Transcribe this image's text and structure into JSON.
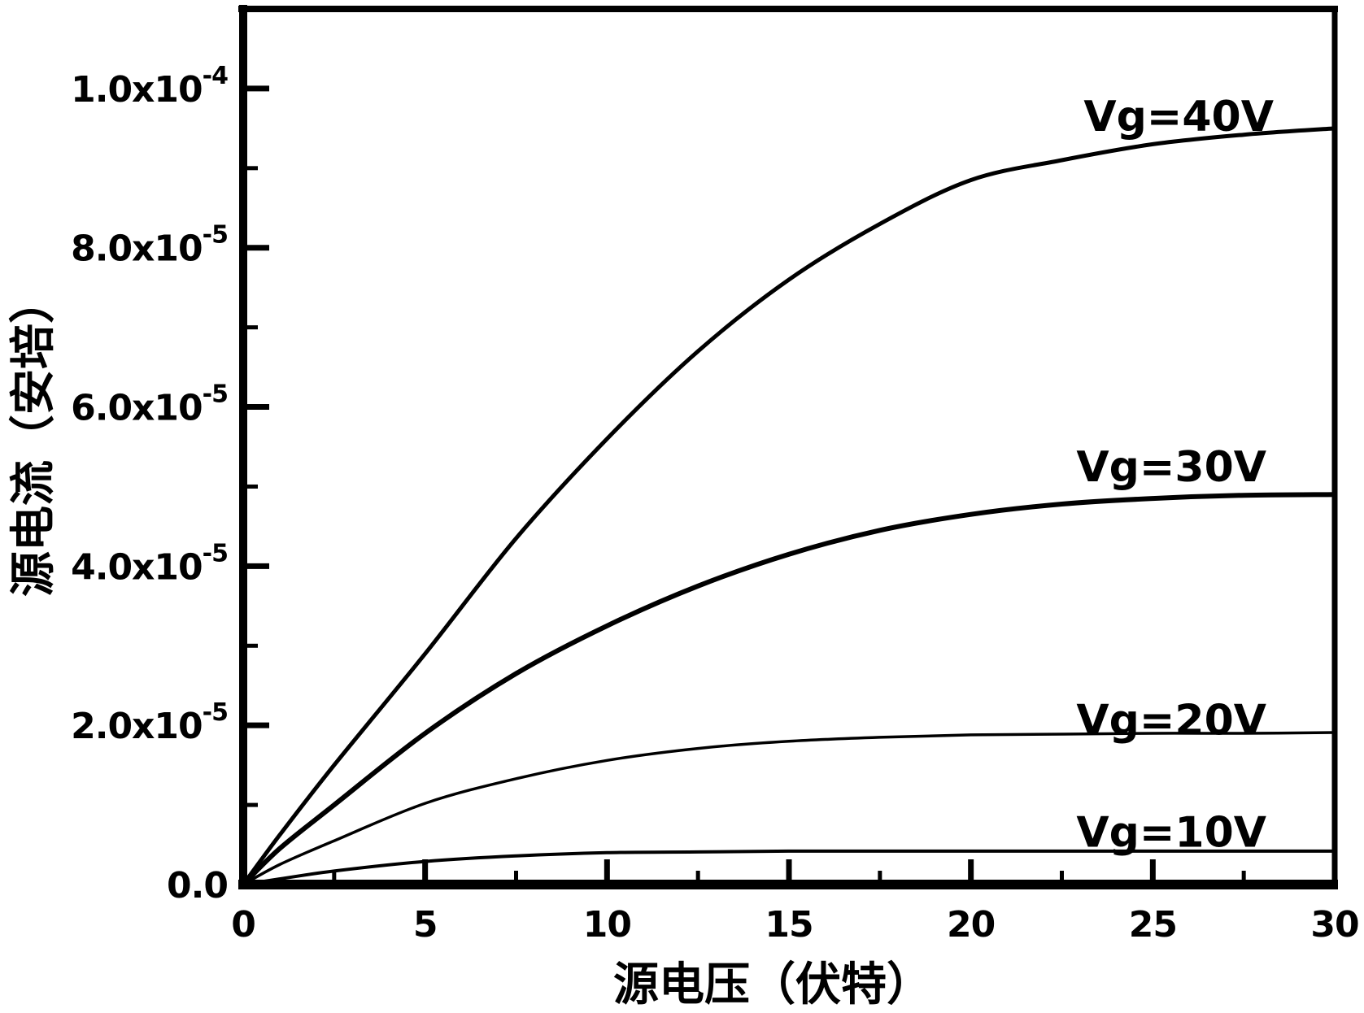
{
  "figure": {
    "background": "#ffffff",
    "ink": "#000000"
  },
  "chart_data": {
    "type": "line",
    "title": "",
    "xlabel": "源电压（伏特）",
    "ylabel": "源电流（安培）",
    "xlim": [
      0,
      30
    ],
    "ylim": [
      0,
      0.00011
    ],
    "grid": false,
    "legend_position": "inline-labels",
    "x_tick_labels": [
      {
        "value": 0,
        "label": "0"
      },
      {
        "value": 5,
        "label": "5"
      },
      {
        "value": 10,
        "label": "10"
      },
      {
        "value": 15,
        "label": "15"
      },
      {
        "value": 20,
        "label": "20"
      },
      {
        "value": 25,
        "label": "25"
      },
      {
        "value": 30,
        "label": "30"
      }
    ],
    "x_minor_ticks": [
      2.5,
      7.5,
      12.5,
      17.5,
      22.5,
      27.5
    ],
    "y_tick_labels": [
      {
        "value": 0,
        "base": "0.0",
        "sup": ""
      },
      {
        "value": 2e-05,
        "base": "2.0x10",
        "sup": "-5"
      },
      {
        "value": 4e-05,
        "base": "4.0x10",
        "sup": "-5"
      },
      {
        "value": 6e-05,
        "base": "6.0x10",
        "sup": "-5"
      },
      {
        "value": 8e-05,
        "base": "8.0x10",
        "sup": "-5"
      },
      {
        "value": 0.0001,
        "base": "1.0x10",
        "sup": "-4"
      }
    ],
    "y_minor_ticks": [
      1e-05,
      3e-05,
      5e-05,
      7e-05,
      9e-05
    ],
    "x": [
      0,
      1,
      2.5,
      5,
      7.5,
      10,
      12.5,
      15,
      17.5,
      20,
      22.5,
      25,
      27.5,
      30
    ],
    "series": [
      {
        "name": "vg-40",
        "label": "Vg=40V",
        "stroke_width": 5,
        "label_anchor": {
          "x": 23.1,
          "y": 9.65e-05
        },
        "values": [
          0,
          6.2e-06,
          1.5e-05,
          2.9e-05,
          4.35e-05,
          5.6e-05,
          6.7e-05,
          7.6e-05,
          8.3e-05,
          8.85e-05,
          9.1e-05,
          9.3e-05,
          9.42e-05,
          9.5e-05
        ]
      },
      {
        "name": "vg-30",
        "label": "Vg=30V",
        "stroke_width": 6,
        "label_anchor": {
          "x": 22.9,
          "y": 5.25e-05
        },
        "values": [
          0,
          4.5e-06,
          1e-05,
          1.9e-05,
          2.65e-05,
          3.25e-05,
          3.75e-05,
          4.15e-05,
          4.45e-05,
          4.65e-05,
          4.78e-05,
          4.85e-05,
          4.89e-05,
          4.9e-05
        ]
      },
      {
        "name": "vg-20",
        "label": "Vg=20V",
        "stroke_width": 3.5,
        "label_anchor": {
          "x": 22.9,
          "y": 2.07e-05
        },
        "values": [
          0,
          2.5e-06,
          5.5e-06,
          1.02e-05,
          1.33e-05,
          1.56e-05,
          1.71e-05,
          1.8e-05,
          1.85e-05,
          1.88e-05,
          1.89e-05,
          1.9e-05,
          1.9e-05,
          1.91e-05
        ]
      },
      {
        "name": "vg-10",
        "label": "Vg=10V",
        "stroke_width": 4,
        "label_anchor": {
          "x": 22.9,
          "y": 6.6e-06
        },
        "values": [
          0,
          7e-07,
          1.7e-06,
          2.9e-06,
          3.6e-06,
          4e-06,
          4.1e-06,
          4.2e-06,
          4.2e-06,
          4.2e-06,
          4.2e-06,
          4.2e-06,
          4.2e-06,
          4.2e-06
        ]
      }
    ]
  }
}
